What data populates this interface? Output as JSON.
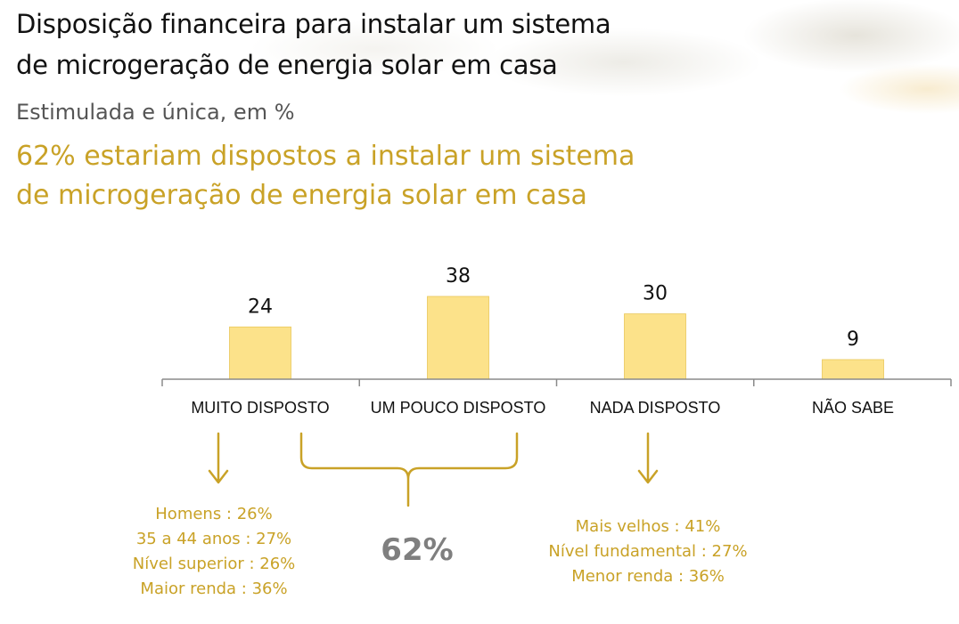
{
  "title": "Disposição  financeira para instalar um sistema\nde microgeração de energia solar em casa",
  "subtitle": "Estimulada e única, em %",
  "headline": "62% estariam dispostos a instalar um sistema\nde microgeração de energia solar em casa",
  "colors": {
    "bar": "#FCE28A",
    "bar_edge": "#E9C75A",
    "accent": "#C9A227",
    "axis": "#8A8A8A",
    "total": "#7F7F7F"
  },
  "chart_data": {
    "type": "bar",
    "categories": [
      "MUITO DISPOSTO",
      "UM POUCO DISPOSTO",
      "NADA DISPOSTO",
      "NÃO SABE"
    ],
    "values": [
      24,
      38,
      30,
      9
    ],
    "ylim": [
      0,
      38
    ]
  },
  "annotations": {
    "muito": "Homens : 26%\n35 a 44 anos : 27%\nNível superior : 26%\nMaior renda : 36%",
    "total": "62%",
    "nada": "Mais velhos : 41%\nNível fundamental : 27%\nMenor renda : 36%"
  }
}
